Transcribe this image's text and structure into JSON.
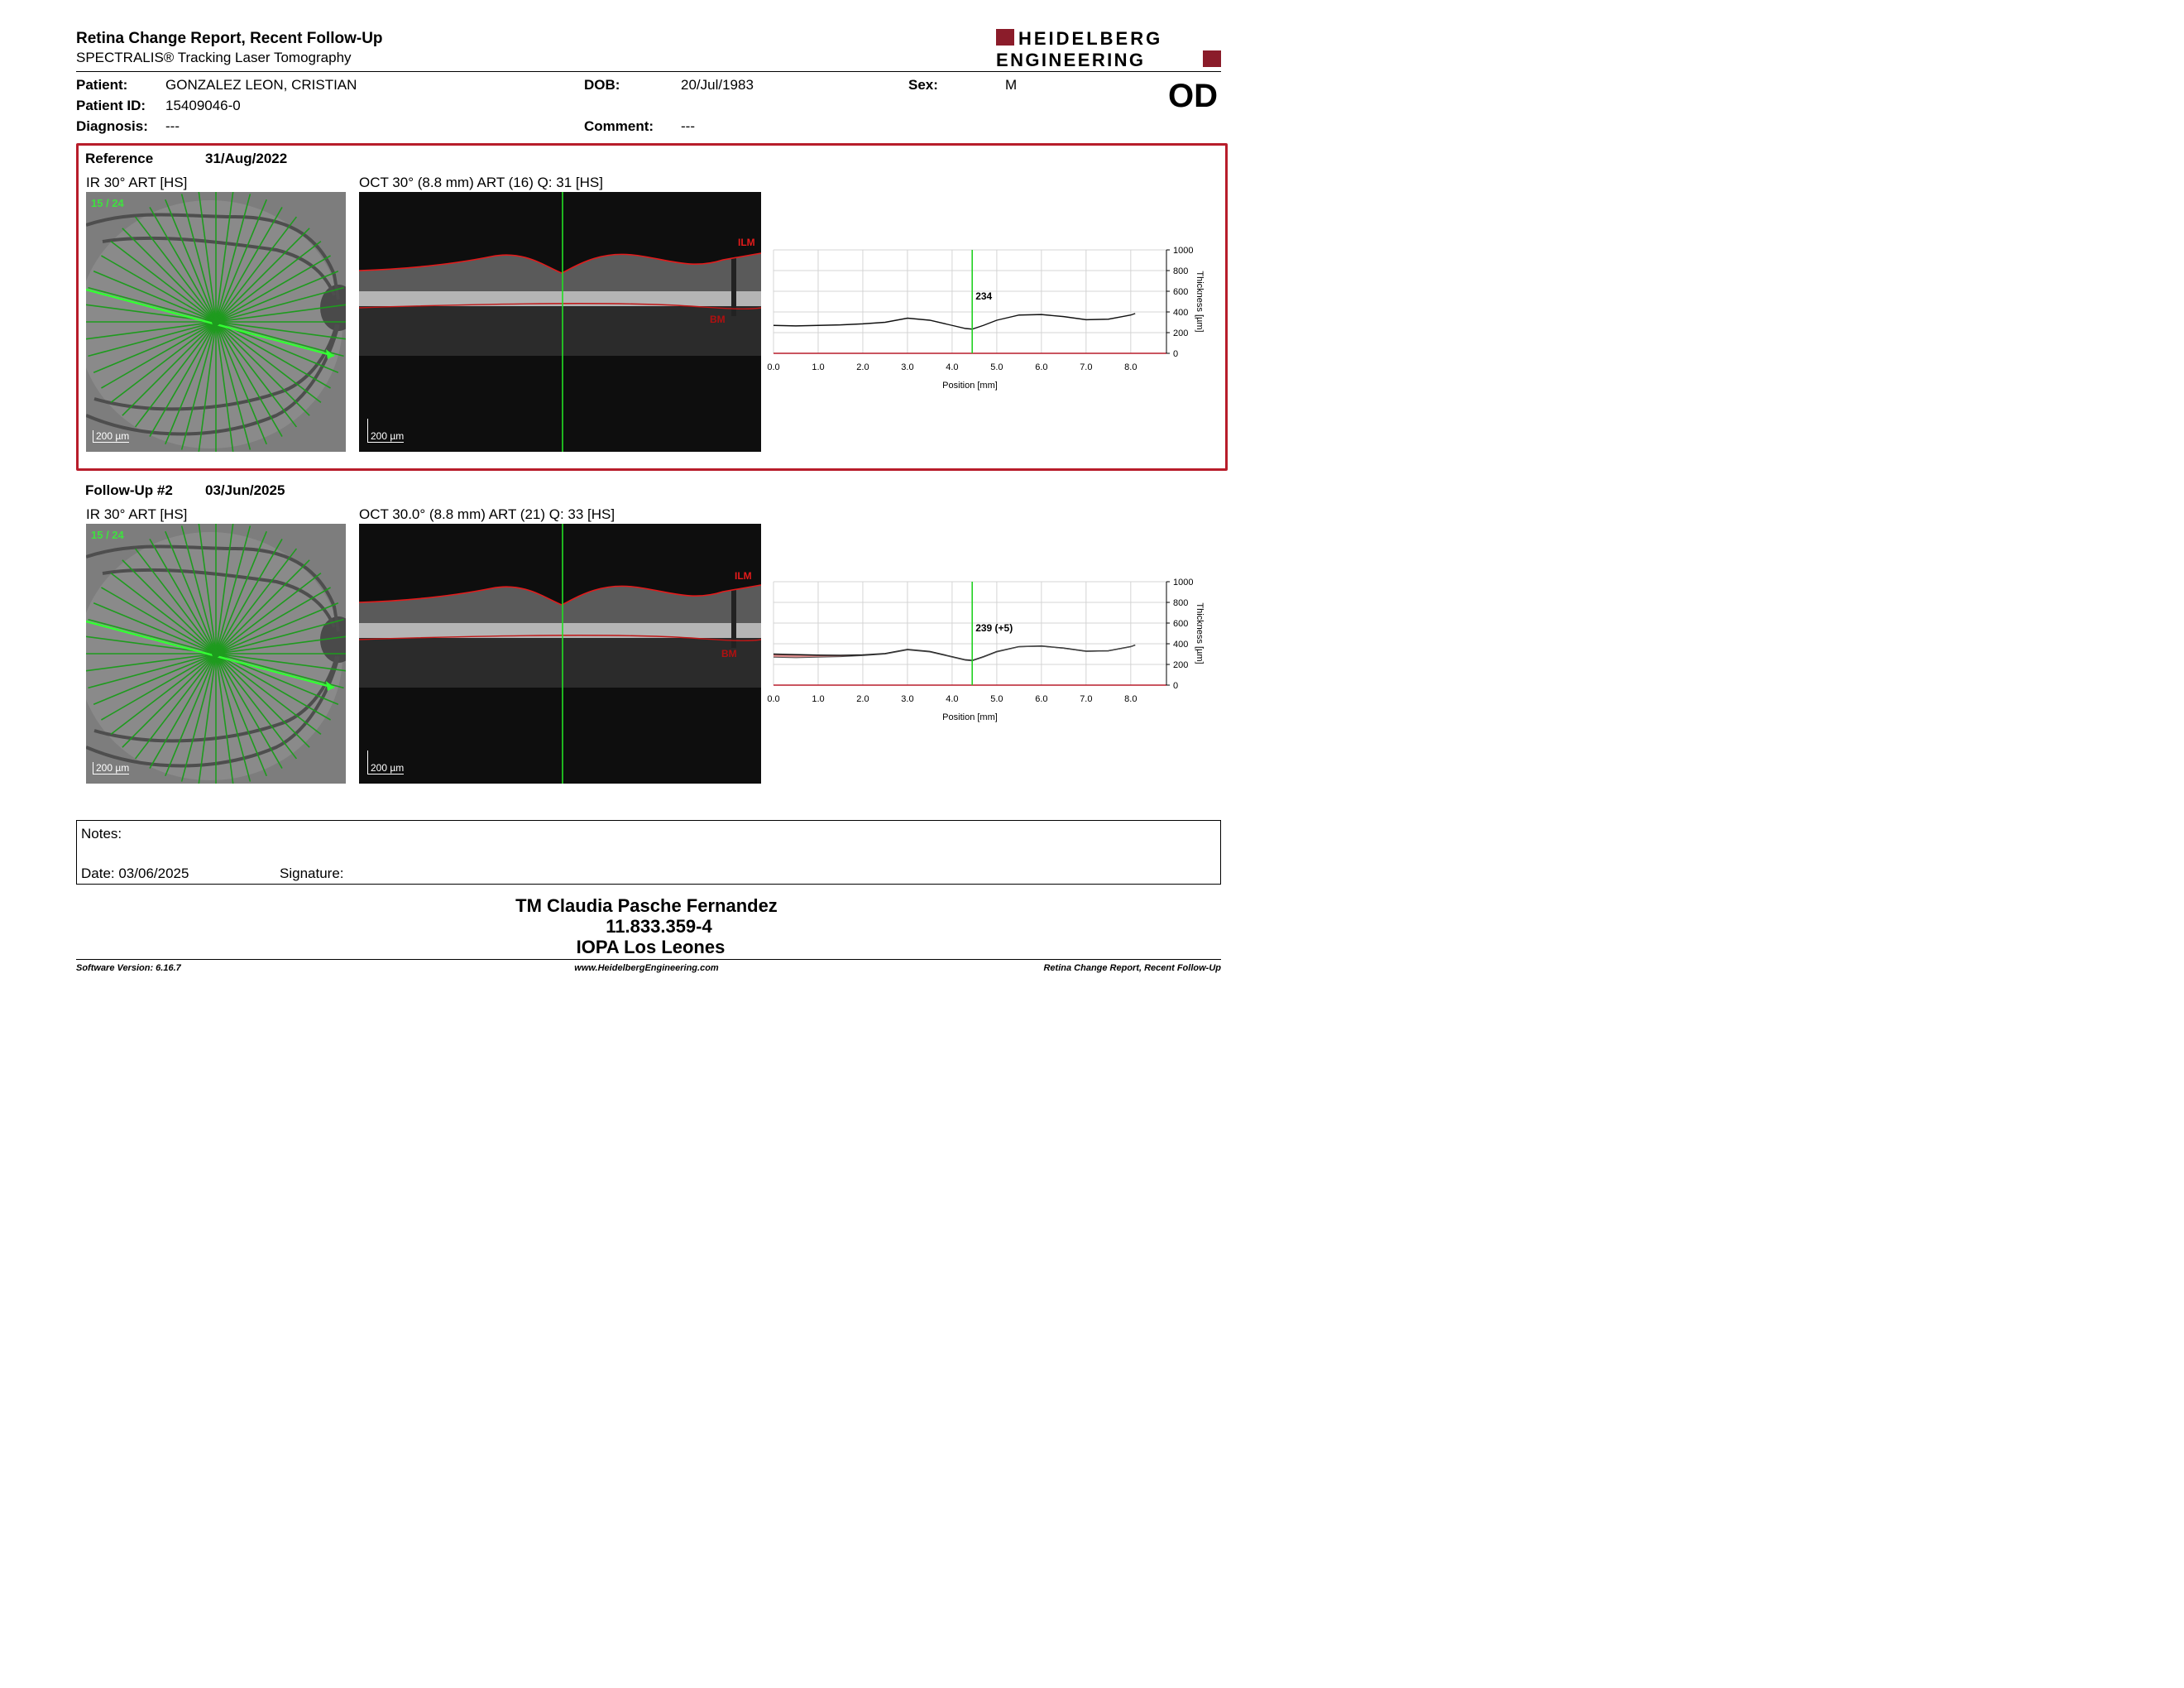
{
  "header": {
    "title": "Retina Change Report, Recent Follow-Up",
    "subtitle": "SPECTRALIS® Tracking Laser Tomography",
    "logo_line1": "HEIDELBERG",
    "logo_line2": "ENGINEERING",
    "brand_color": "#8b1c2a"
  },
  "patient": {
    "patient_label": "Patient:",
    "patient_value": "GONZALEZ LEON, CRISTIAN",
    "id_label": "Patient ID:",
    "id_value": "15409046-0",
    "diagnosis_label": "Diagnosis:",
    "diagnosis_value": "---",
    "dob_label": "DOB:",
    "dob_value": "20/Jul/1983",
    "comment_label": "Comment:",
    "comment_value": "---",
    "sex_label": "Sex:",
    "sex_value": "M",
    "eye": "OD"
  },
  "reference": {
    "label": "Reference",
    "date": "31/Aug/2022",
    "ir_label": "IR 30° ART [HS]",
    "oct_label": "OCT 30° (8.8 mm) ART (16) Q: 31 [HS]",
    "scan_index": "15 / 24",
    "scale": "200 µm",
    "ilm": "ILM",
    "bm": "BM",
    "border_color": "#b81d2b"
  },
  "followup": {
    "label": "Follow-Up #2",
    "date": "03/Jun/2025",
    "ir_label": "IR 30° ART [HS]",
    "oct_label": "OCT 30.0° (8.8 mm) ART (21) Q: 33 [HS]",
    "scan_index": "15 / 24",
    "scale": "200 µm",
    "ilm": "ILM",
    "bm": "BM"
  },
  "chart_data": [
    {
      "type": "line",
      "xlabel": "Position [mm]",
      "ylabel": "Thickness [µm]",
      "xlim": [
        0,
        8.8
      ],
      "ylim": [
        0,
        1000
      ],
      "xticks": [
        "0.0",
        "1.0",
        "2.0",
        "3.0",
        "4.0",
        "5.0",
        "6.0",
        "7.0",
        "8.0"
      ],
      "yticks": [
        "0",
        "200",
        "400",
        "600",
        "800",
        "1000"
      ],
      "cursor_x": 4.45,
      "cursor_label": "234",
      "grid": true,
      "series": [
        {
          "x": [
            0,
            0.5,
            1,
            1.5,
            2,
            2.5,
            3,
            3.5,
            4,
            4.3,
            4.45,
            4.7,
            5,
            5.5,
            6,
            6.5,
            7,
            7.5,
            8,
            8.1
          ],
          "y": [
            270,
            265,
            270,
            275,
            285,
            300,
            340,
            320,
            270,
            240,
            234,
            270,
            320,
            370,
            375,
            355,
            325,
            330,
            370,
            385
          ]
        }
      ]
    },
    {
      "type": "line",
      "xlabel": "Position [mm]",
      "ylabel": "Thickness [µm]",
      "xlim": [
        0,
        8.8
      ],
      "ylim": [
        0,
        1000
      ],
      "xticks": [
        "0.0",
        "1.0",
        "2.0",
        "3.0",
        "4.0",
        "5.0",
        "6.0",
        "7.0",
        "8.0"
      ],
      "yticks": [
        "0",
        "200",
        "400",
        "600",
        "800",
        "1000"
      ],
      "cursor_x": 4.45,
      "cursor_label": "239 (+5)",
      "grid": true,
      "series": [
        {
          "x": [
            0,
            0.5,
            1,
            1.5,
            2,
            2.5,
            3,
            3.5,
            4,
            4.3,
            4.45,
            4.7,
            5,
            5.5,
            6,
            6.5,
            7,
            7.5,
            8,
            8.1
          ],
          "y": [
            300,
            295,
            290,
            288,
            292,
            305,
            345,
            325,
            275,
            245,
            239,
            275,
            325,
            372,
            378,
            358,
            328,
            332,
            372,
            388
          ]
        },
        {
          "x": [
            0,
            0.5,
            1,
            1.5,
            2,
            2.5,
            3,
            3.5,
            4,
            4.3,
            4.45,
            4.7,
            5,
            5.5,
            6,
            6.5,
            7,
            7.5,
            8,
            8.1
          ],
          "y": [
            270,
            265,
            270,
            275,
            285,
            300,
            340,
            320,
            270,
            240,
            234,
            270,
            320,
            370,
            375,
            355,
            325,
            330,
            370,
            385
          ]
        }
      ],
      "fill_color": "#d98a8a"
    }
  ],
  "notes": {
    "notes_label": "Notes:",
    "date_label": "Date: 03/06/2025",
    "signature_label": "Signature:"
  },
  "footer": {
    "name": "TM Claudia Pasche Fernandez",
    "id": "11.833.359-4",
    "org": "IOPA Los Leones",
    "software": "Software Version: 6.16.7",
    "website": "www.HeidelbergEngineering.com",
    "report": "Retina Change Report, Recent Follow-Up"
  }
}
